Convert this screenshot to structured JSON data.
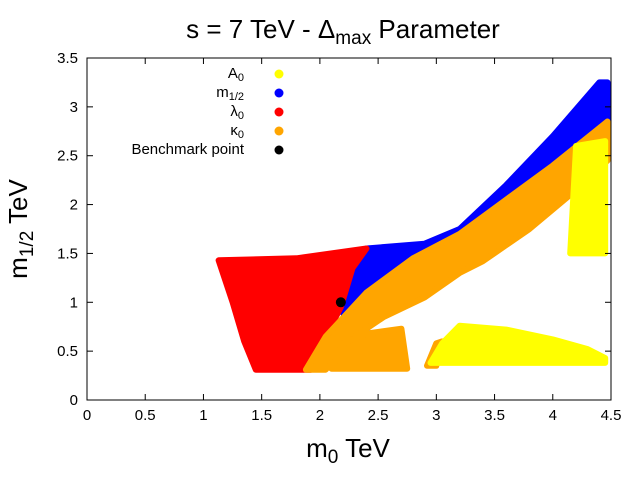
{
  "chart_data": {
    "type": "scatter",
    "title": {
      "main": "s = 7 TeV - Δ",
      "sub": "max",
      "rest": " Parameter"
    },
    "xlabel": {
      "main": "m",
      "sub": "0",
      "rest": " TeV"
    },
    "ylabel": {
      "main": "m",
      "sub": "1/2",
      "rest": " TeV"
    },
    "xlim": [
      0,
      4.5
    ],
    "ylim": [
      0,
      3.5
    ],
    "x_ticks": [
      "0",
      "0.5",
      "1",
      "1.5",
      "2",
      "2.5",
      "3",
      "3.5",
      "4",
      "4.5"
    ],
    "y_ticks": [
      "0",
      "0.5",
      "1",
      "1.5",
      "2",
      "2.5",
      "3",
      "3.5"
    ],
    "legend_position": "top-left",
    "series": [
      {
        "name": "A",
        "sub": "0",
        "color": "#ffff00",
        "regions": [
          [
            [
              2.95,
              0.38
            ],
            [
              3.05,
              0.58
            ],
            [
              3.2,
              0.76
            ],
            [
              3.6,
              0.72
            ],
            [
              4.0,
              0.62
            ],
            [
              4.3,
              0.52
            ],
            [
              4.45,
              0.43
            ],
            [
              4.45,
              0.38
            ]
          ],
          [
            [
              4.15,
              1.5
            ],
            [
              4.2,
              2.6
            ],
            [
              4.45,
              2.65
            ],
            [
              4.45,
              1.5
            ]
          ]
        ]
      },
      {
        "name": "m",
        "sub": "1/2",
        "color": "#0000ff",
        "regions": [
          [
            [
              2.18,
              0.95
            ],
            [
              2.25,
              1.25
            ],
            [
              2.4,
              1.55
            ],
            [
              2.9,
              1.6
            ],
            [
              3.2,
              1.75
            ],
            [
              3.6,
              2.2
            ],
            [
              4.0,
              2.7
            ],
            [
              4.4,
              3.25
            ],
            [
              4.47,
              3.25
            ],
            [
              4.47,
              2.85
            ],
            [
              4.1,
              2.45
            ],
            [
              3.6,
              1.95
            ],
            [
              3.2,
              1.52
            ],
            [
              2.8,
              1.12
            ],
            [
              2.5,
              0.85
            ],
            [
              2.3,
              0.6
            ]
          ]
        ]
      },
      {
        "name": "λ",
        "sub": "0",
        "color": "#ff0000",
        "regions": [
          [
            [
              1.13,
              1.43
            ],
            [
              1.8,
              1.45
            ],
            [
              2.4,
              1.55
            ],
            [
              2.28,
              1.35
            ],
            [
              2.18,
              0.95
            ],
            [
              2.05,
              0.65
            ],
            [
              1.92,
              0.31
            ],
            [
              1.45,
              0.31
            ],
            [
              1.35,
              0.6
            ],
            [
              1.25,
              1.0
            ]
          ]
        ]
      },
      {
        "name": "κ",
        "sub": "0",
        "color": "#ffa500",
        "regions": [
          [
            [
              1.88,
              0.31
            ],
            [
              2.05,
              0.65
            ],
            [
              2.4,
              1.1
            ],
            [
              2.8,
              1.45
            ],
            [
              3.2,
              1.7
            ],
            [
              3.6,
              2.05
            ],
            [
              4.0,
              2.4
            ],
            [
              4.47,
              2.85
            ],
            [
              4.47,
              2.45
            ],
            [
              4.2,
              2.15
            ],
            [
              3.8,
              1.75
            ],
            [
              3.4,
              1.42
            ],
            [
              3.2,
              1.3
            ],
            [
              2.9,
              1.05
            ],
            [
              2.55,
              0.85
            ],
            [
              2.3,
              0.65
            ],
            [
              2.05,
              0.31
            ]
          ],
          [
            [
              2.1,
              0.32
            ],
            [
              2.2,
              0.58
            ],
            [
              2.4,
              0.68
            ],
            [
              2.7,
              0.73
            ],
            [
              2.75,
              0.32
            ]
          ],
          [
            [
              2.92,
              0.35
            ],
            [
              3.0,
              0.58
            ],
            [
              3.05,
              0.6
            ],
            [
              3.0,
              0.35
            ]
          ]
        ]
      }
    ],
    "benchmark": {
      "name": "Benchmark point",
      "color": "#000000",
      "x": 2.18,
      "y": 1.0
    }
  }
}
